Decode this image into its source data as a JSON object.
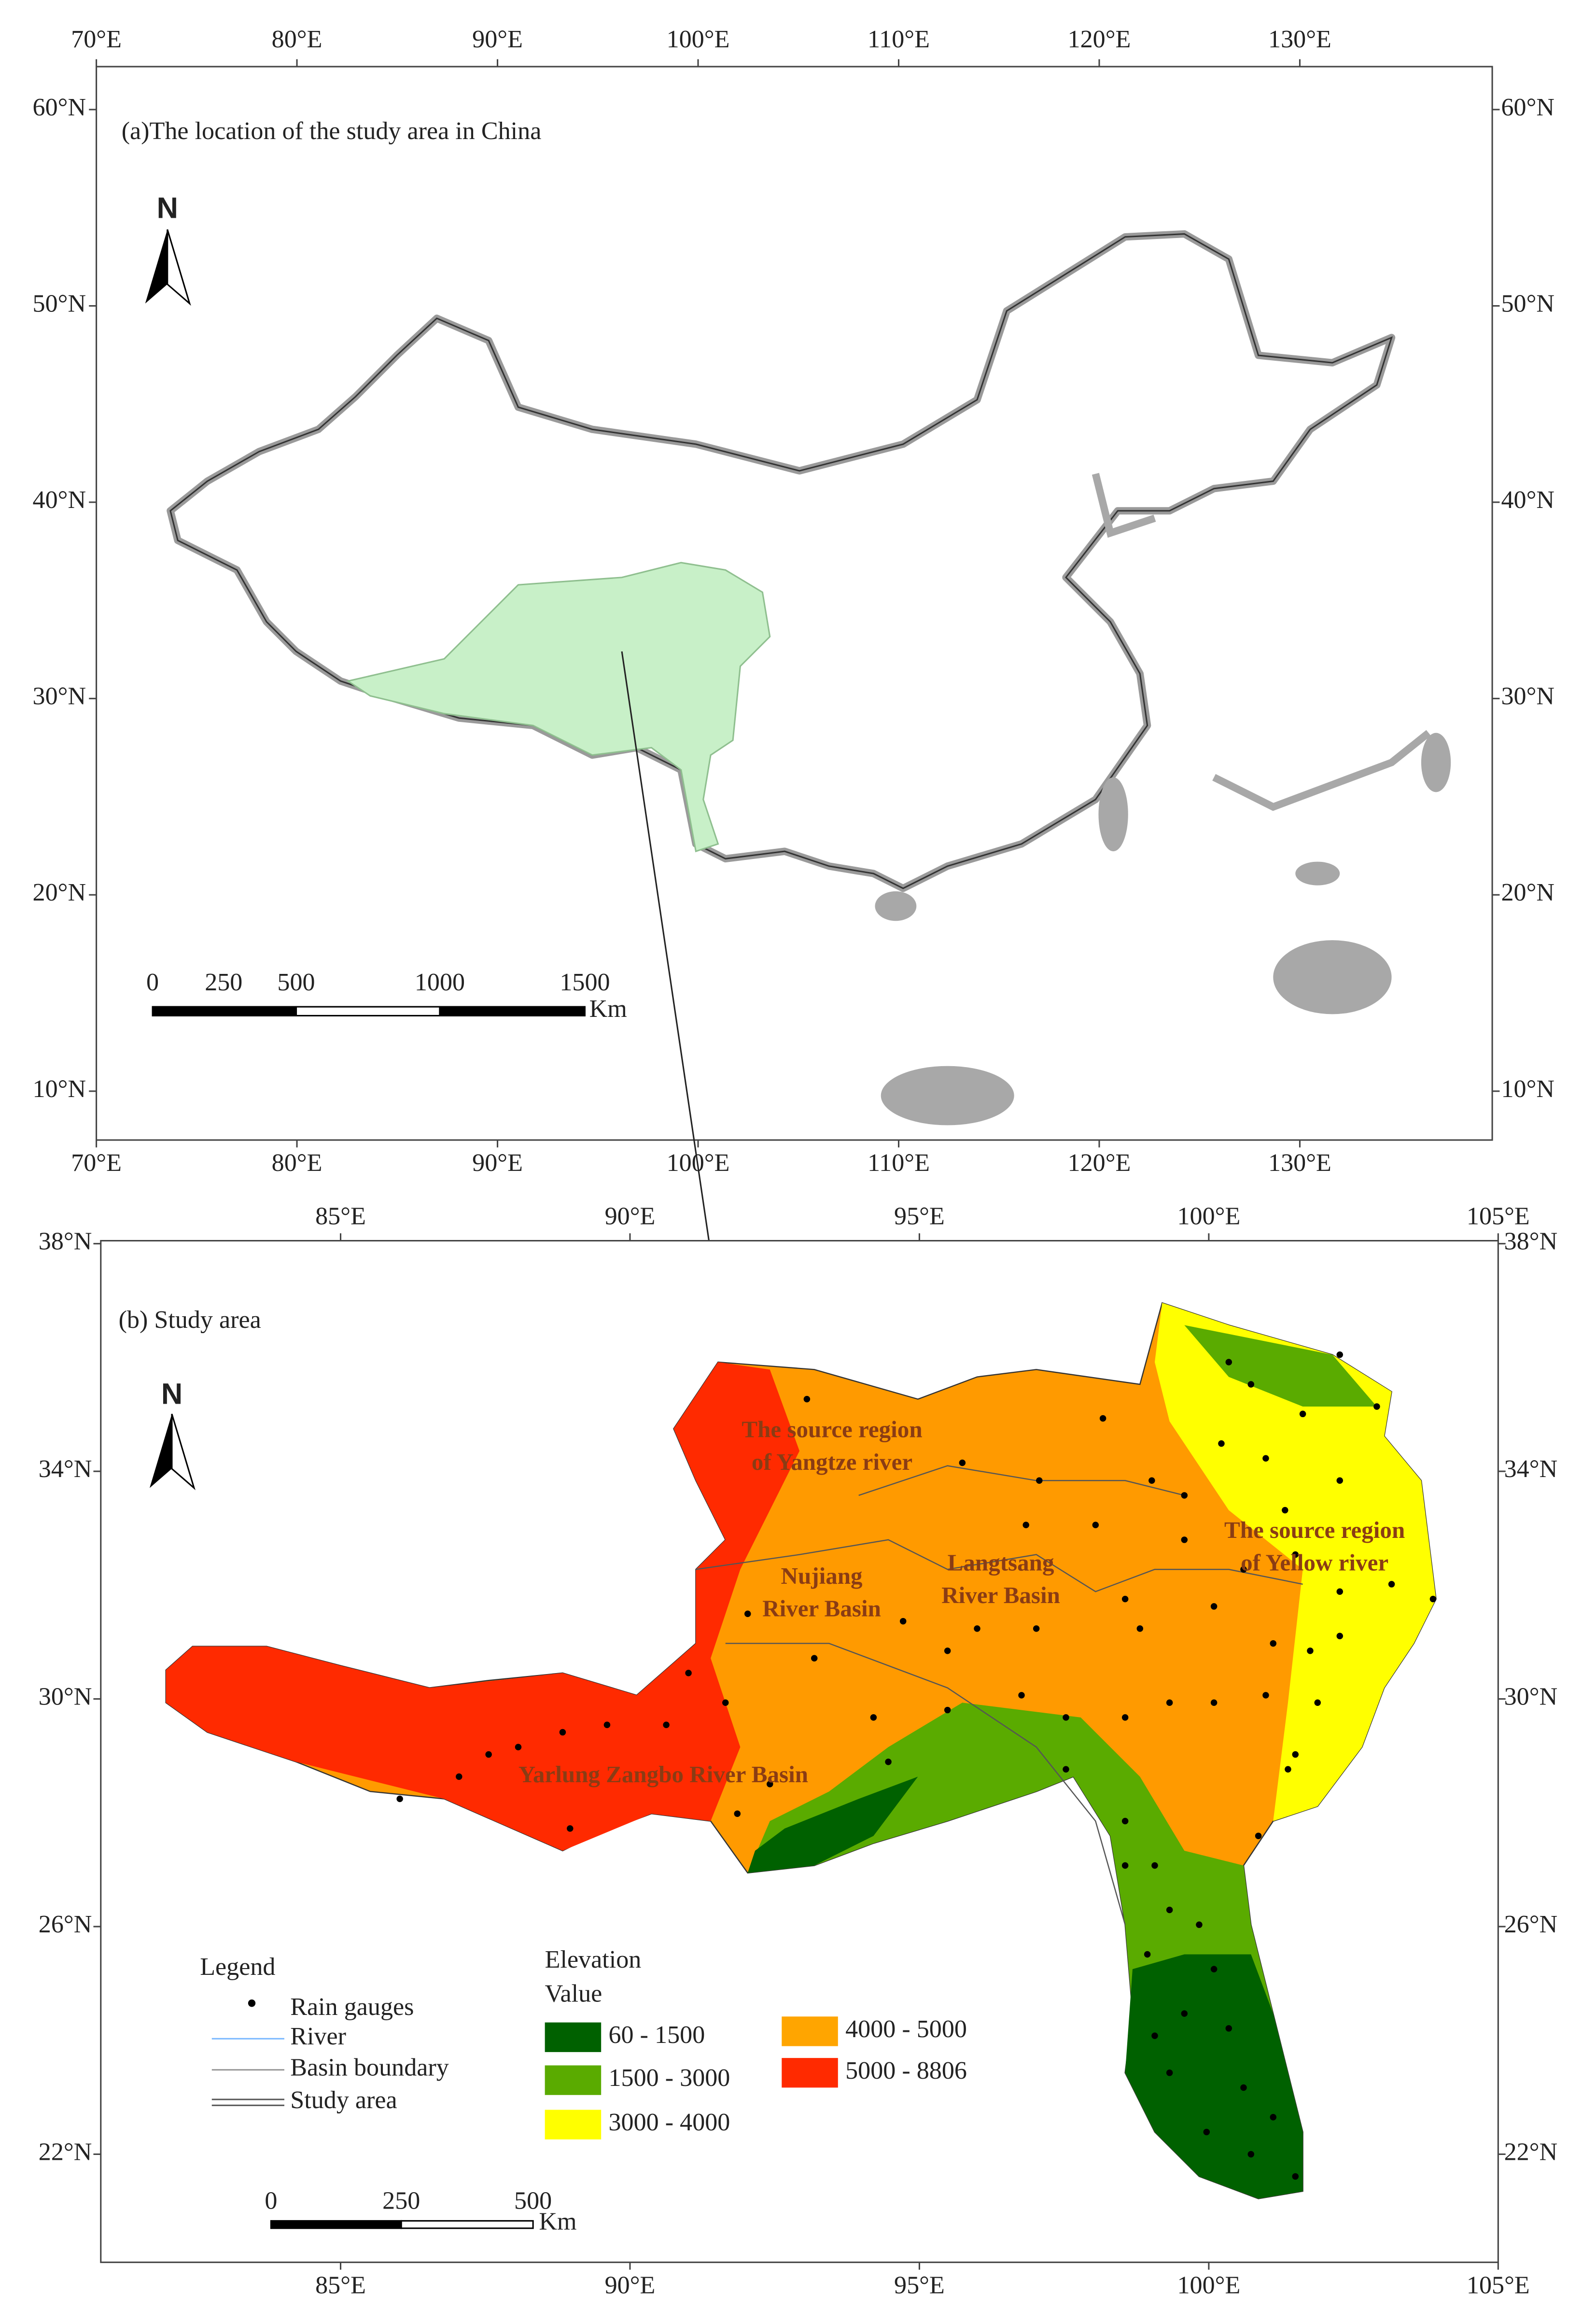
{
  "panel_a": {
    "title": "(a)The location of the study area in China",
    "x_ticks": [
      "70°E",
      "80°E",
      "90°E",
      "100°E",
      "110°E",
      "120°E",
      "130°E"
    ],
    "y_ticks": [
      "60°N",
      "50°N",
      "40°N",
      "30°N",
      "20°N",
      "10°N"
    ],
    "north": "N",
    "scale_labels": [
      "0",
      "250",
      "500",
      "1000",
      "1500"
    ],
    "scale_unit": "Km"
  },
  "panel_b": {
    "title": "(b) Study area",
    "x_ticks": [
      "85°E",
      "90°E",
      "95°E",
      "100°E",
      "105°E"
    ],
    "y_ticks": [
      "38°N",
      "34°N",
      "30°N",
      "26°N",
      "22°N"
    ],
    "north": "N",
    "region_labels": [
      [
        "The source region",
        "of Yangtze river"
      ],
      [
        "Nujiang",
        "River Basin"
      ],
      [
        "Langtsang",
        "River Basin"
      ],
      [
        "The source region",
        "of Yellow river"
      ],
      [
        "Yarlung Zangbo River Basin"
      ]
    ],
    "legend": {
      "title": "Legend",
      "items": [
        "Rain gauges",
        "River",
        "Basin boundary",
        "Study area"
      ]
    },
    "elevation": {
      "title": "Elevation",
      "subtitle": "Value",
      "classes": [
        {
          "label": "60 - 1500",
          "color": "#006100"
        },
        {
          "label": "1500 - 3000",
          "color": "#5aab00"
        },
        {
          "label": "3000 - 4000",
          "color": "#ffff00"
        },
        {
          "label": "4000 - 5000",
          "color": "#ffa500"
        },
        {
          "label": "5000 - 8806",
          "color": "#ff2a00"
        }
      ]
    },
    "scale_labels": [
      "0",
      "250",
      "500"
    ],
    "scale_unit": "Km"
  }
}
